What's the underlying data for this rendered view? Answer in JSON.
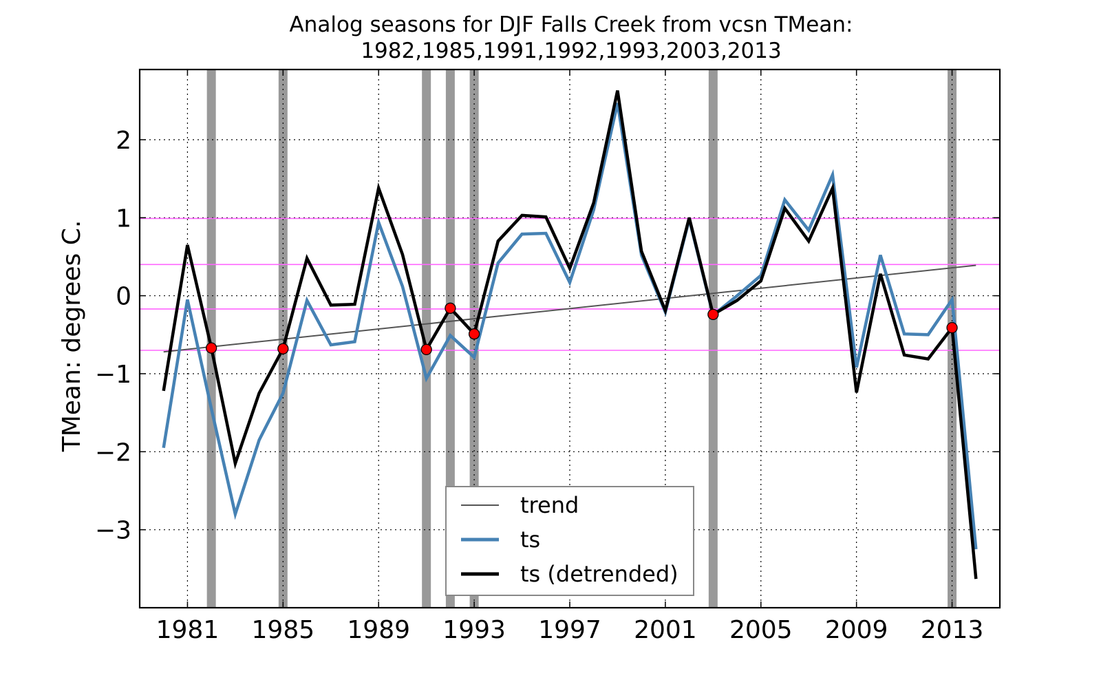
{
  "chart_data": {
    "type": "line",
    "title": "Analog seasons for DJF Falls Creek from vcsn TMean:",
    "subtitle": "1982,1985,1991,1992,1993,2003,2013",
    "xlabel": "",
    "ylabel": "TMean: degrees C.",
    "xlim": [
      1979,
      2015
    ],
    "ylim": [
      -4,
      2.9
    ],
    "x_ticks": [
      1981,
      1985,
      1989,
      1993,
      1997,
      2001,
      2005,
      2009,
      2013
    ],
    "y_ticks": [
      -3,
      -2,
      -1,
      0,
      1,
      2
    ],
    "y_tick_labels": [
      "−3",
      "−2",
      "−1",
      "0",
      "1",
      "2"
    ],
    "grid": true,
    "legend_position": "lower-center",
    "x": [
      1980,
      1981,
      1982,
      1983,
      1984,
      1985,
      1986,
      1987,
      1988,
      1989,
      1990,
      1991,
      1992,
      1993,
      1994,
      1995,
      1996,
      1997,
      1998,
      1999,
      2000,
      2001,
      2002,
      2003,
      2004,
      2005,
      2006,
      2007,
      2008,
      2009,
      2010,
      2011,
      2012,
      2013,
      2014
    ],
    "series": [
      {
        "name": "trend",
        "color": "#555555",
        "x": [
          1980,
          2014
        ],
        "values": [
          -0.72,
          0.39
        ]
      },
      {
        "name": "ts",
        "color": "#4682b4",
        "values": [
          -1.95,
          -0.05,
          -1.45,
          -2.8,
          -1.85,
          -1.25,
          -0.06,
          -0.63,
          -0.59,
          0.94,
          0.12,
          -1.06,
          -0.51,
          -0.79,
          0.42,
          0.79,
          0.8,
          0.17,
          1.1,
          2.47,
          0.52,
          -0.21,
          0.98,
          -0.25,
          0.0,
          0.26,
          1.23,
          0.84,
          1.55,
          -0.92,
          0.52,
          -0.49,
          -0.5,
          -0.05,
          -3.25
        ]
      },
      {
        "name": "ts (detrended)",
        "color": "#000000",
        "values": [
          -1.22,
          0.65,
          -0.67,
          -2.15,
          -1.25,
          -0.68,
          0.48,
          -0.12,
          -0.11,
          1.38,
          0.53,
          -0.69,
          -0.16,
          -0.49,
          0.7,
          1.03,
          1.01,
          0.35,
          1.19,
          2.63,
          0.57,
          -0.19,
          1.0,
          -0.24,
          -0.06,
          0.19,
          1.12,
          0.7,
          1.38,
          -1.24,
          0.28,
          -0.76,
          -0.81,
          -0.41,
          -3.63
        ]
      }
    ],
    "analog_years": [
      1982,
      1985,
      1991,
      1992,
      1993,
      2003,
      2013
    ],
    "analog_band_color": "#999999",
    "marker_color": "#ff0000",
    "threshold_lines": [
      0.99,
      0.4,
      -0.17,
      -0.7
    ],
    "threshold_color": "#ff66ff"
  }
}
